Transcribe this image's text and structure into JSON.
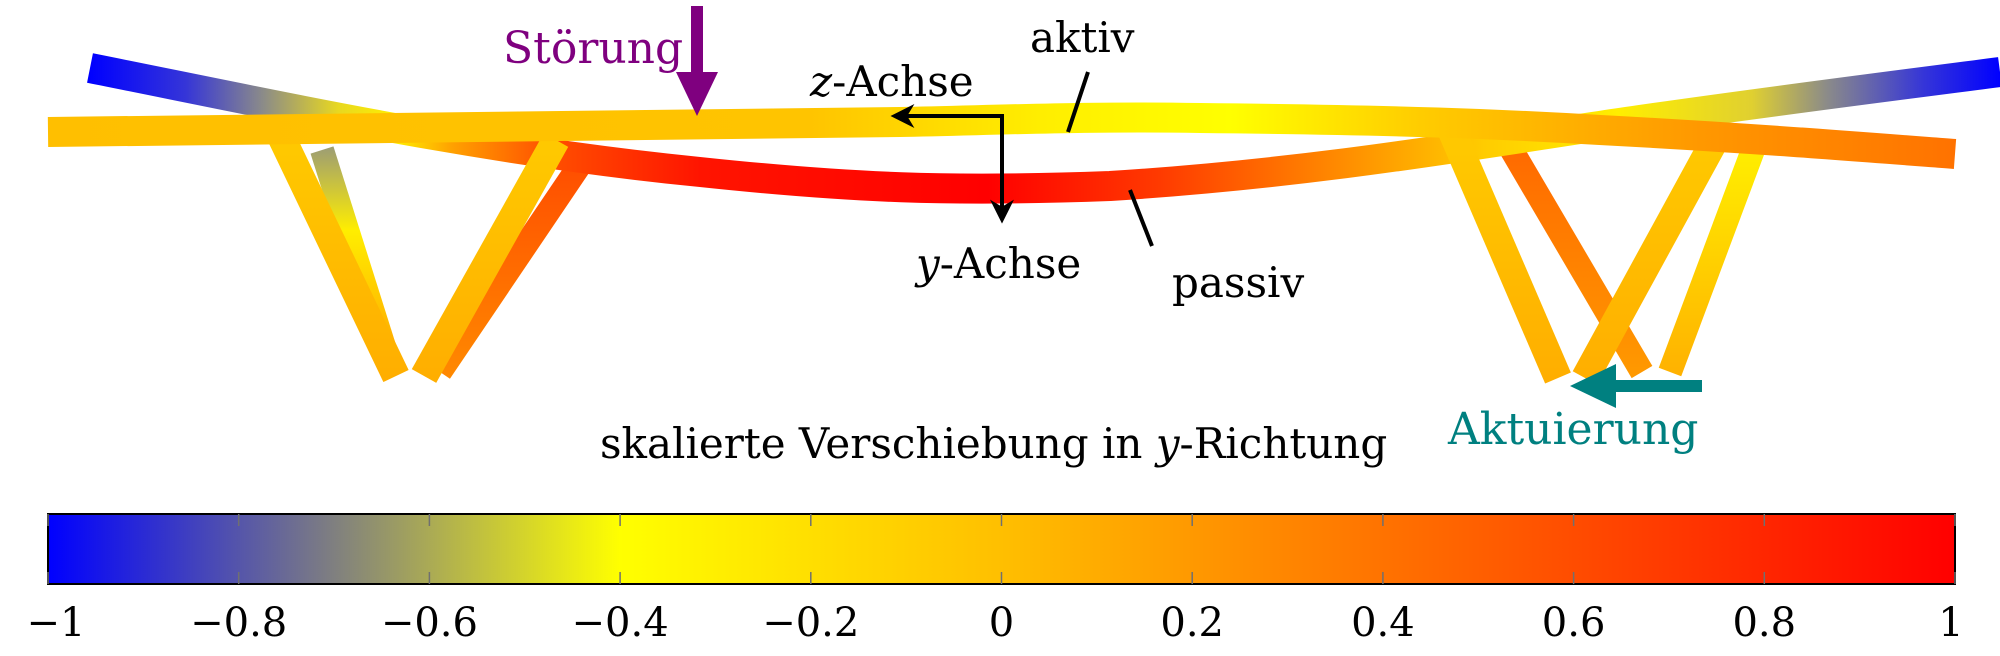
{
  "labels": {
    "stoerung": "Störung",
    "aktiv": "aktiv",
    "passiv": "passiv",
    "z_axis_var": "z",
    "z_axis_rest": "-Achse",
    "y_axis_var": "y",
    "y_axis_rest": "-Achse",
    "aktuierung": "Aktuierung",
    "colorbar_title_prefix": "skalierte Verschiebung in ",
    "colorbar_title_var": "y",
    "colorbar_title_suffix": "-Richtung"
  },
  "colors": {
    "stoerung": "#7f007f",
    "aktuierung": "#008080",
    "axes": "#000000"
  },
  "colorbar": {
    "min": -1,
    "max": 1,
    "colormap": "blue-gray-yellow-orange-red",
    "stops": [
      {
        "value": -1.0,
        "color": "#0000ff"
      },
      {
        "value": -0.4,
        "color": "#ffff00"
      },
      {
        "value": 0.0,
        "color": "#ffbf00"
      },
      {
        "value": 1.0,
        "color": "#ff0000"
      }
    ],
    "tick_labels": [
      "−1",
      "−0.8",
      "−0.6",
      "−0.4",
      "−0.2",
      "0",
      "0.2",
      "0.4",
      "0.6",
      "0.8",
      "1"
    ]
  }
}
